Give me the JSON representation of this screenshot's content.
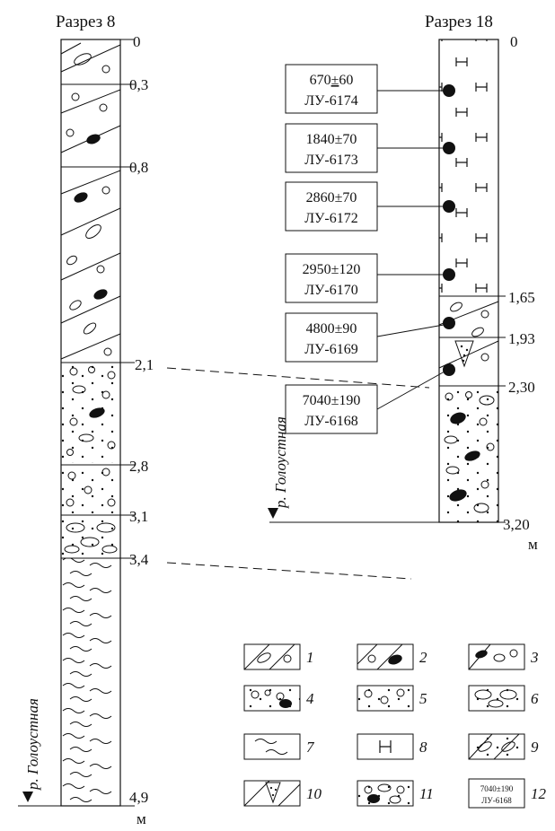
{
  "section8": {
    "title": "Разрез 8",
    "depths": [
      "0",
      "0,3",
      "0,8",
      "2,1",
      "2,8",
      "3,1",
      "3,4",
      "4,9"
    ],
    "unit": "м",
    "river": "р. Голоустная"
  },
  "section18": {
    "title": "Разрез 18",
    "depths": [
      "0",
      "1,65",
      "1,93",
      "2,30",
      "3,20"
    ],
    "unit": "м",
    "river": "р. Голоустная",
    "dates": [
      {
        "age": "670",
        "pm": "±",
        "err": "60",
        "lab": "ЛУ-6174"
      },
      {
        "age": "1840",
        "pm": "±",
        "err": "70",
        "lab": "ЛУ-6173"
      },
      {
        "age": "2860",
        "pm": "±",
        "err": "70",
        "lab": "ЛУ-6172"
      },
      {
        "age": "2950",
        "pm": "±",
        "err": "120",
        "lab": "ЛУ-6170"
      },
      {
        "age": "4800",
        "pm": "±",
        "err": "90",
        "lab": "ЛУ-6169"
      },
      {
        "age": "7040",
        "pm": "±",
        "err": "190",
        "lab": "ЛУ-6168"
      }
    ]
  },
  "legend": {
    "items": [
      "1",
      "2",
      "3",
      "4",
      "5",
      "6",
      "7",
      "8",
      "9",
      "10",
      "11",
      "12"
    ],
    "sample_date": "7040±190",
    "sample_lab": "ЛУ-6168"
  }
}
